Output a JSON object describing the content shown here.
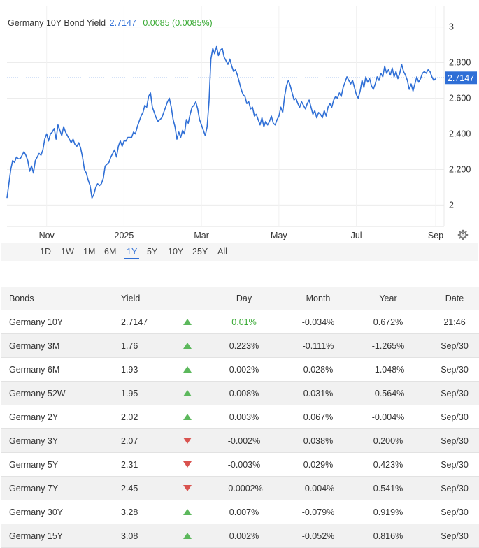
{
  "header": {
    "name": "Germany 10Y Bond Yield",
    "value": "2.7147",
    "change": "0.0085 (0.0085%)"
  },
  "chart_data": {
    "type": "line",
    "title": "Germany 10Y Bond Yield",
    "xlabel": "",
    "ylabel": "",
    "ylim": [
      1.88,
      3.12
    ],
    "yticks": [
      {
        "value": 3.0,
        "label": "3"
      },
      {
        "value": 2.8,
        "label": "2.800"
      },
      {
        "value": 2.6,
        "label": "2.600"
      },
      {
        "value": 2.4,
        "label": "2.400"
      },
      {
        "value": 2.2,
        "label": "2.200"
      },
      {
        "value": 2.0,
        "label": "2"
      }
    ],
    "xticks": [
      "Nov",
      "2025",
      "Mar",
      "May",
      "Jul",
      "Sep"
    ],
    "grid": true,
    "last_value_label": "2.7147",
    "line_color": "#2f6fd6",
    "series": [
      {
        "values": [
          2.04,
          2.12,
          2.2,
          2.25,
          2.24,
          2.27,
          2.26,
          2.26,
          2.28,
          2.3,
          2.28,
          2.25,
          2.19,
          2.22,
          2.18,
          2.25,
          2.27,
          2.29,
          2.28,
          2.31,
          2.37,
          2.4,
          2.36,
          2.4,
          2.41,
          2.43,
          2.37,
          2.45,
          2.42,
          2.39,
          2.44,
          2.41,
          2.39,
          2.37,
          2.35,
          2.37,
          2.34,
          2.33,
          2.35,
          2.32,
          2.27,
          2.2,
          2.18,
          2.14,
          2.11,
          2.04,
          2.06,
          2.1,
          2.12,
          2.11,
          2.12,
          2.15,
          2.22,
          2.23,
          2.24,
          2.27,
          2.29,
          2.31,
          2.27,
          2.33,
          2.36,
          2.33,
          2.36,
          2.36,
          2.38,
          2.38,
          2.38,
          2.41,
          2.4,
          2.44,
          2.47,
          2.5,
          2.52,
          2.56,
          2.55,
          2.61,
          2.63,
          2.55,
          2.52,
          2.49,
          2.47,
          2.48,
          2.49,
          2.52,
          2.55,
          2.58,
          2.6,
          2.55,
          2.48,
          2.44,
          2.37,
          2.41,
          2.38,
          2.42,
          2.4,
          2.48,
          2.46,
          2.51,
          2.55,
          2.56,
          2.58,
          2.54,
          2.48,
          2.45,
          2.42,
          2.39,
          2.44,
          2.58,
          2.82,
          2.88,
          2.85,
          2.89,
          2.84,
          2.87,
          2.88,
          2.83,
          2.81,
          2.79,
          2.82,
          2.78,
          2.75,
          2.76,
          2.73,
          2.69,
          2.65,
          2.62,
          2.61,
          2.57,
          2.58,
          2.54,
          2.55,
          2.5,
          2.51,
          2.48,
          2.45,
          2.49,
          2.44,
          2.47,
          2.45,
          2.47,
          2.5,
          2.46,
          2.45,
          2.48,
          2.5,
          2.55,
          2.52,
          2.61,
          2.67,
          2.7,
          2.67,
          2.63,
          2.59,
          2.6,
          2.57,
          2.55,
          2.58,
          2.56,
          2.54,
          2.57,
          2.59,
          2.55,
          2.51,
          2.53,
          2.49,
          2.52,
          2.51,
          2.49,
          2.53,
          2.5,
          2.55,
          2.57,
          2.55,
          2.59,
          2.61,
          2.6,
          2.63,
          2.61,
          2.66,
          2.69,
          2.72,
          2.7,
          2.68,
          2.7,
          2.66,
          2.62,
          2.6,
          2.64,
          2.7,
          2.66,
          2.72,
          2.69,
          2.71,
          2.67,
          2.65,
          2.68,
          2.72,
          2.7,
          2.74,
          2.72,
          2.78,
          2.74,
          2.76,
          2.73,
          2.77,
          2.72,
          2.75,
          2.71,
          2.74,
          2.79,
          2.75,
          2.73,
          2.7,
          2.65,
          2.68,
          2.64,
          2.68,
          2.72,
          2.69,
          2.71,
          2.74,
          2.75,
          2.74,
          2.76,
          2.75,
          2.72,
          2.7,
          2.71
        ]
      }
    ]
  },
  "ranges": [
    "1D",
    "1W",
    "1M",
    "6M",
    "1Y",
    "5Y",
    "10Y",
    "25Y",
    "All"
  ],
  "active_range": "1Y",
  "table": {
    "headers": [
      "Bonds",
      "Yield",
      "",
      "Day",
      "Month",
      "Year",
      "Date"
    ],
    "rows": [
      {
        "name": "Germany 10Y",
        "yield": "2.7147",
        "dir": "up",
        "day": "0.01%",
        "month": "-0.034%",
        "year": "0.672%",
        "date": "21:46"
      },
      {
        "name": "Germany 3M",
        "yield": "1.76",
        "dir": "up",
        "day": "0.223%",
        "month": "-0.111%",
        "year": "-1.265%",
        "date": "Sep/30"
      },
      {
        "name": "Germany 6M",
        "yield": "1.93",
        "dir": "up",
        "day": "0.002%",
        "month": "0.028%",
        "year": "-1.048%",
        "date": "Sep/30"
      },
      {
        "name": "Germany 52W",
        "yield": "1.95",
        "dir": "up",
        "day": "0.008%",
        "month": "0.031%",
        "year": "-0.564%",
        "date": "Sep/30"
      },
      {
        "name": "Germany 2Y",
        "yield": "2.02",
        "dir": "up",
        "day": "0.003%",
        "month": "0.067%",
        "year": "-0.004%",
        "date": "Sep/30"
      },
      {
        "name": "Germany 3Y",
        "yield": "2.07",
        "dir": "down",
        "day": "-0.002%",
        "month": "0.038%",
        "year": "0.200%",
        "date": "Sep/30"
      },
      {
        "name": "Germany 5Y",
        "yield": "2.31",
        "dir": "down",
        "day": "-0.003%",
        "month": "0.029%",
        "year": "0.423%",
        "date": "Sep/30"
      },
      {
        "name": "Germany 7Y",
        "yield": "2.45",
        "dir": "down",
        "day": "-0.0002%",
        "month": "-0.004%",
        "year": "0.541%",
        "date": "Sep/30"
      },
      {
        "name": "Germany 30Y",
        "yield": "3.28",
        "dir": "up",
        "day": "0.007%",
        "month": "-0.079%",
        "year": "0.919%",
        "date": "Sep/30"
      },
      {
        "name": "Germany 15Y",
        "yield": "3.08",
        "dir": "up",
        "day": "0.002%",
        "month": "-0.052%",
        "year": "0.816%",
        "date": "Sep/30"
      }
    ]
  }
}
